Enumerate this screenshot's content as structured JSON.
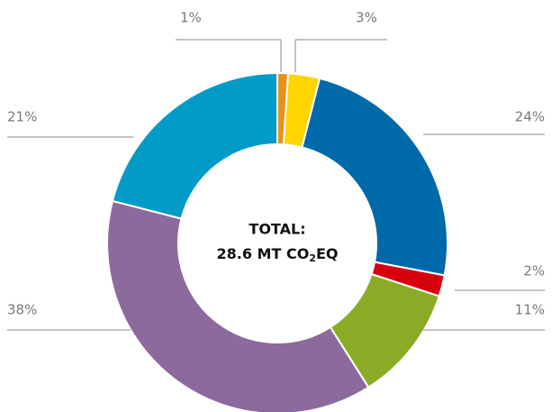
{
  "chart_data": {
    "type": "donut",
    "values": [
      1,
      3,
      24,
      2,
      11,
      38,
      21
    ],
    "value_labels": [
      "1%",
      "3%",
      "24%",
      "2%",
      "11%",
      "38%",
      "21%"
    ],
    "colors": [
      "#e8901a",
      "#ffd500",
      "#0069a9",
      "#d7000f",
      "#8bab26",
      "#8c6a9e",
      "#009cc7"
    ],
    "center_label": {
      "line1": "TOTAL:",
      "line2": [
        "28.6 MT CO",
        "2",
        "EQ"
      ]
    }
  }
}
